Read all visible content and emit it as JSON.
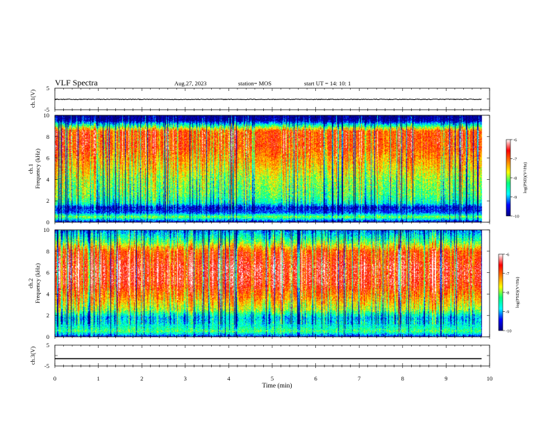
{
  "header": {
    "title": "VLF Spectra",
    "date": "Aug.27, 2023",
    "station": "station= MOS",
    "start": "start  UT =   14: 10: 1"
  },
  "chart_data": [
    {
      "type": "line",
      "name": "ch.1 waveform",
      "ylabel": "ch.1(V)",
      "ylim": [
        -5,
        5
      ],
      "yticks": [
        5,
        -5
      ],
      "xlim": [
        0,
        10
      ],
      "baseline": -0.2
    },
    {
      "type": "heatmap",
      "name": "ch.1 spectrogram",
      "ylabel": "ch.1\nFrequency (kHz)",
      "ylabel_top": "ch.1",
      "ylabel_bottom": "Frequency (kHz)",
      "ylim": [
        0,
        10
      ],
      "yticks": [
        0,
        2,
        4,
        6,
        8,
        10
      ],
      "xlim": [
        0,
        10
      ],
      "colorbar": {
        "label": "log(PSD)(V²/Hz)",
        "min": -10,
        "max": -6,
        "ticks": [
          "-6",
          "-7",
          "-8",
          "-9",
          "-10"
        ]
      },
      "colormap": [
        "#000080",
        "#0000ff",
        "#00ffff",
        "#00ff80",
        "#ffff00",
        "#ff8000",
        "#ff0000",
        "#ffffff"
      ],
      "profile": [
        {
          "f": 0.0,
          "v": -9.7
        },
        {
          "f": 0.5,
          "v": -8.0
        },
        {
          "f": 0.9,
          "v": -9.3
        },
        {
          "f": 1.4,
          "v": -9.6
        },
        {
          "f": 1.8,
          "v": -8.6
        },
        {
          "f": 2.5,
          "v": -8.2
        },
        {
          "f": 4.0,
          "v": -7.9
        },
        {
          "f": 5.5,
          "v": -7.4
        },
        {
          "f": 7.0,
          "v": -6.9
        },
        {
          "f": 8.5,
          "v": -6.9
        },
        {
          "f": 9.0,
          "v": -8.3
        },
        {
          "f": 9.5,
          "v": -9.8
        },
        {
          "f": 10.0,
          "v": -10.0
        }
      ]
    },
    {
      "type": "heatmap",
      "name": "ch.2 spectrogram",
      "ylabel": "ch.2\nFrequency (kHz)",
      "ylabel_top": "ch.2",
      "ylabel_bottom": "Frequency (kHz)",
      "ylim": [
        0,
        10
      ],
      "yticks": [
        0,
        2,
        4,
        6,
        8,
        10
      ],
      "xlim": [
        0,
        10
      ],
      "colorbar": {
        "label": "log(PSD)(V²/Hz)",
        "min": -10,
        "max": -6,
        "ticks": [
          "-6",
          "-7",
          "-8",
          "-9",
          "-10"
        ]
      },
      "colormap": [
        "#000080",
        "#0000ff",
        "#00ffff",
        "#00ff80",
        "#ffff00",
        "#ff8000",
        "#ff0000",
        "#ffffff"
      ],
      "profile": [
        {
          "f": 0.0,
          "v": -9.5
        },
        {
          "f": 0.5,
          "v": -8.2
        },
        {
          "f": 1.0,
          "v": -8.6
        },
        {
          "f": 1.8,
          "v": -8.9
        },
        {
          "f": 2.5,
          "v": -7.9
        },
        {
          "f": 3.5,
          "v": -7.3
        },
        {
          "f": 5.0,
          "v": -6.6
        },
        {
          "f": 6.5,
          "v": -6.5
        },
        {
          "f": 8.0,
          "v": -6.9
        },
        {
          "f": 8.8,
          "v": -8.0
        },
        {
          "f": 9.4,
          "v": -8.6
        },
        {
          "f": 10.0,
          "v": -9.2
        }
      ]
    },
    {
      "type": "line",
      "name": "ch.3 waveform",
      "ylabel": "ch.3(V)",
      "ylim": [
        -5,
        5
      ],
      "yticks": [
        5,
        -5
      ],
      "xlim": [
        0,
        10
      ],
      "baseline": -1.5,
      "xlabel": "Time  (min)",
      "xticks": [
        0,
        1,
        2,
        3,
        4,
        5,
        6,
        7,
        8,
        9,
        10
      ]
    }
  ]
}
